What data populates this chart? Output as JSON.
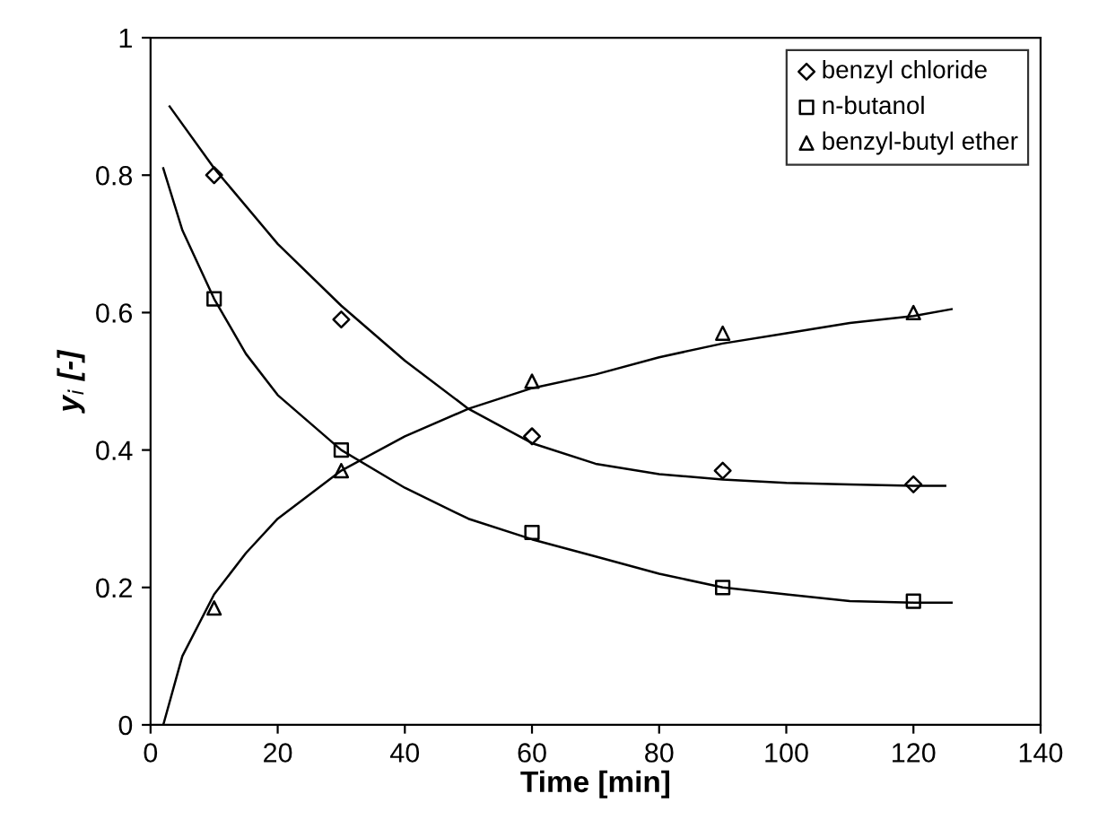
{
  "chart_data": {
    "type": "scatter",
    "xlabel": "Time [min]",
    "ylabel": "y$_{i}$ [-]",
    "xlim": [
      0,
      140
    ],
    "ylim": [
      0,
      1
    ],
    "xticks": [
      0,
      20,
      40,
      60,
      80,
      100,
      120,
      140
    ],
    "yticks": [
      0,
      0.2,
      0.4,
      0.6,
      0.8,
      1
    ],
    "legend": "top right",
    "grid": false,
    "series": [
      {
        "name": "benzyl chloride",
        "marker": "diamond",
        "color": "#000000",
        "x": [
          10,
          30,
          60,
          90,
          120
        ],
        "values": [
          0.8,
          0.59,
          0.42,
          0.37,
          0.35
        ]
      },
      {
        "name": "n-butanol",
        "marker": "square",
        "color": "#000000",
        "x": [
          10,
          30,
          60,
          90,
          120
        ],
        "values": [
          0.62,
          0.4,
          0.28,
          0.2,
          0.18
        ]
      },
      {
        "name": "benzyl-butyl ether",
        "marker": "triangle",
        "color": "#000000",
        "x": [
          10,
          30,
          60,
          90,
          120
        ],
        "values": [
          0.17,
          0.37,
          0.5,
          0.57,
          0.6
        ]
      },
      {
        "type": "line",
        "marker": "none",
        "color": "#000000",
        "x": [
          3,
          10,
          20,
          30,
          40,
          50,
          60,
          70,
          80,
          90,
          100,
          110,
          120,
          125
        ],
        "values": [
          0.9,
          0.81,
          0.7,
          0.61,
          0.53,
          0.46,
          0.41,
          0.38,
          0.365,
          0.357,
          0.352,
          0.35,
          0.348,
          0.348
        ]
      },
      {
        "type": "line",
        "marker": "none",
        "color": "#000000",
        "x": [
          2,
          5,
          10,
          15,
          20,
          30,
          40,
          50,
          60,
          70,
          80,
          90,
          100,
          110,
          120,
          126
        ],
        "values": [
          0.81,
          0.72,
          0.62,
          0.54,
          0.48,
          0.4,
          0.345,
          0.3,
          0.27,
          0.245,
          0.22,
          0.2,
          0.19,
          0.18,
          0.178,
          0.178
        ]
      },
      {
        "type": "line",
        "marker": "none",
        "color": "#000000",
        "x": [
          2,
          5,
          10,
          15,
          20,
          30,
          40,
          50,
          60,
          70,
          80,
          90,
          100,
          110,
          120,
          126
        ],
        "values": [
          0,
          0.1,
          0.19,
          0.25,
          0.3,
          0.37,
          0.42,
          0.46,
          0.49,
          0.51,
          0.535,
          0.555,
          0.57,
          0.585,
          0.595,
          0.605
        ]
      }
    ]
  }
}
